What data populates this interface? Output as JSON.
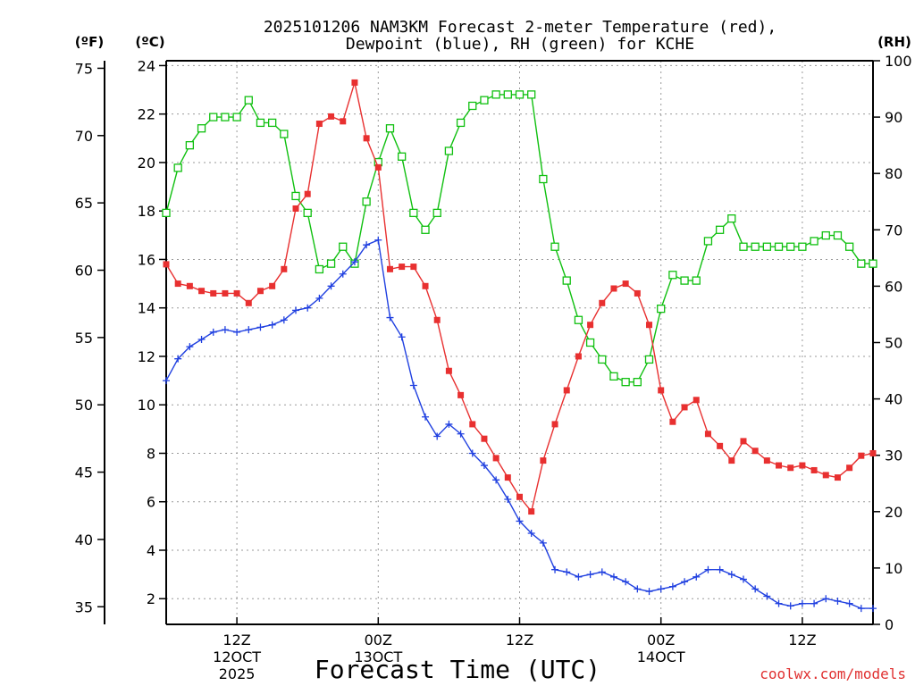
{
  "chart_data": {
    "type": "line",
    "title_line1": "2025101206 NAM3KM Forecast 2-meter Temperature (red),",
    "title_line2": "Dewpoint (blue), RH (green) for KCHE",
    "left_outer_axis": {
      "label": "(ºF)",
      "ticks": [
        35,
        40,
        45,
        50,
        55,
        60,
        65,
        70,
        75
      ]
    },
    "left_inner_axis": {
      "label": "(ºC)",
      "ticks": [
        2,
        4,
        6,
        8,
        10,
        12,
        14,
        16,
        18,
        20,
        22,
        24
      ],
      "ylim": [
        0.94,
        24.2
      ]
    },
    "right_axis": {
      "label": "(RH)",
      "ticks": [
        0,
        10,
        20,
        30,
        40,
        50,
        60,
        70,
        80,
        90,
        100
      ],
      "ylim": [
        0,
        100
      ]
    },
    "xlabel": "Forecast Time (UTC)",
    "x_range_hours": [
      0,
      60
    ],
    "x_ticks": [
      {
        "hour": 6,
        "l1": "12Z",
        "l2": "12OCT",
        "l3": "2025"
      },
      {
        "hour": 18,
        "l1": "00Z",
        "l2": "13OCT",
        "l3": ""
      },
      {
        "hour": 30,
        "l1": "12Z",
        "l2": "",
        "l3": ""
      },
      {
        "hour": 42,
        "l1": "00Z",
        "l2": "14OCT",
        "l3": ""
      },
      {
        "hour": 54,
        "l1": "12Z",
        "l2": "",
        "l3": ""
      }
    ],
    "credit": "coolwx.com/models",
    "colors": {
      "temperature": "#e83030",
      "dewpoint": "#2040e0",
      "rh": "#10c010"
    },
    "series": [
      {
        "name": "Temperature (°C)",
        "axis": "C",
        "values": [
          15.8,
          15.0,
          14.9,
          14.7,
          14.6,
          14.6,
          14.6,
          14.2,
          14.7,
          14.9,
          15.6,
          18.1,
          18.7,
          21.6,
          21.9,
          21.7,
          23.3,
          21.0,
          19.8,
          15.6,
          15.7,
          15.7,
          14.9,
          13.5,
          11.4,
          10.4,
          9.2,
          8.6,
          7.8,
          7.0,
          6.2,
          5.6,
          7.7,
          9.2,
          10.6,
          12.0,
          13.3,
          14.2,
          14.8,
          15.0,
          14.6,
          13.3,
          10.6,
          9.3,
          9.9,
          10.2,
          8.8,
          8.3,
          7.7,
          8.5,
          8.1,
          7.7,
          7.5,
          7.4,
          7.5,
          7.3,
          7.1,
          7.0,
          7.4,
          7.9,
          8.0
        ]
      },
      {
        "name": "Dewpoint (°C)",
        "axis": "C",
        "values": [
          11.0,
          11.9,
          12.4,
          12.7,
          13.0,
          13.1,
          13.0,
          13.1,
          13.2,
          13.3,
          13.5,
          13.9,
          14.0,
          14.4,
          14.9,
          15.4,
          15.9,
          16.6,
          16.8,
          13.6,
          12.8,
          10.8,
          9.5,
          8.7,
          9.2,
          8.8,
          8.0,
          7.5,
          6.9,
          6.1,
          5.2,
          4.7,
          4.3,
          3.2,
          3.1,
          2.9,
          3.0,
          3.1,
          2.9,
          2.7,
          2.4,
          2.3,
          2.4,
          2.5,
          2.7,
          2.9,
          3.2,
          3.2,
          3.0,
          2.8,
          2.4,
          2.1,
          1.8,
          1.7,
          1.8,
          1.8,
          2.0,
          1.9,
          1.8,
          1.6,
          1.6
        ]
      },
      {
        "name": "RH (%)",
        "axis": "RH",
        "values": [
          73,
          81,
          85,
          88,
          90,
          90,
          90,
          93,
          89,
          89,
          87,
          76,
          73,
          63,
          64,
          67,
          64,
          75,
          82,
          88,
          83,
          73,
          70,
          73,
          84,
          89,
          92,
          93,
          94,
          94,
          94,
          94,
          79,
          67,
          61,
          54,
          50,
          47,
          44,
          43,
          43,
          47,
          56,
          62,
          61,
          61,
          68,
          70,
          72,
          67,
          67,
          67,
          67,
          67,
          67,
          68,
          69,
          69,
          67,
          64,
          64
        ]
      }
    ]
  }
}
